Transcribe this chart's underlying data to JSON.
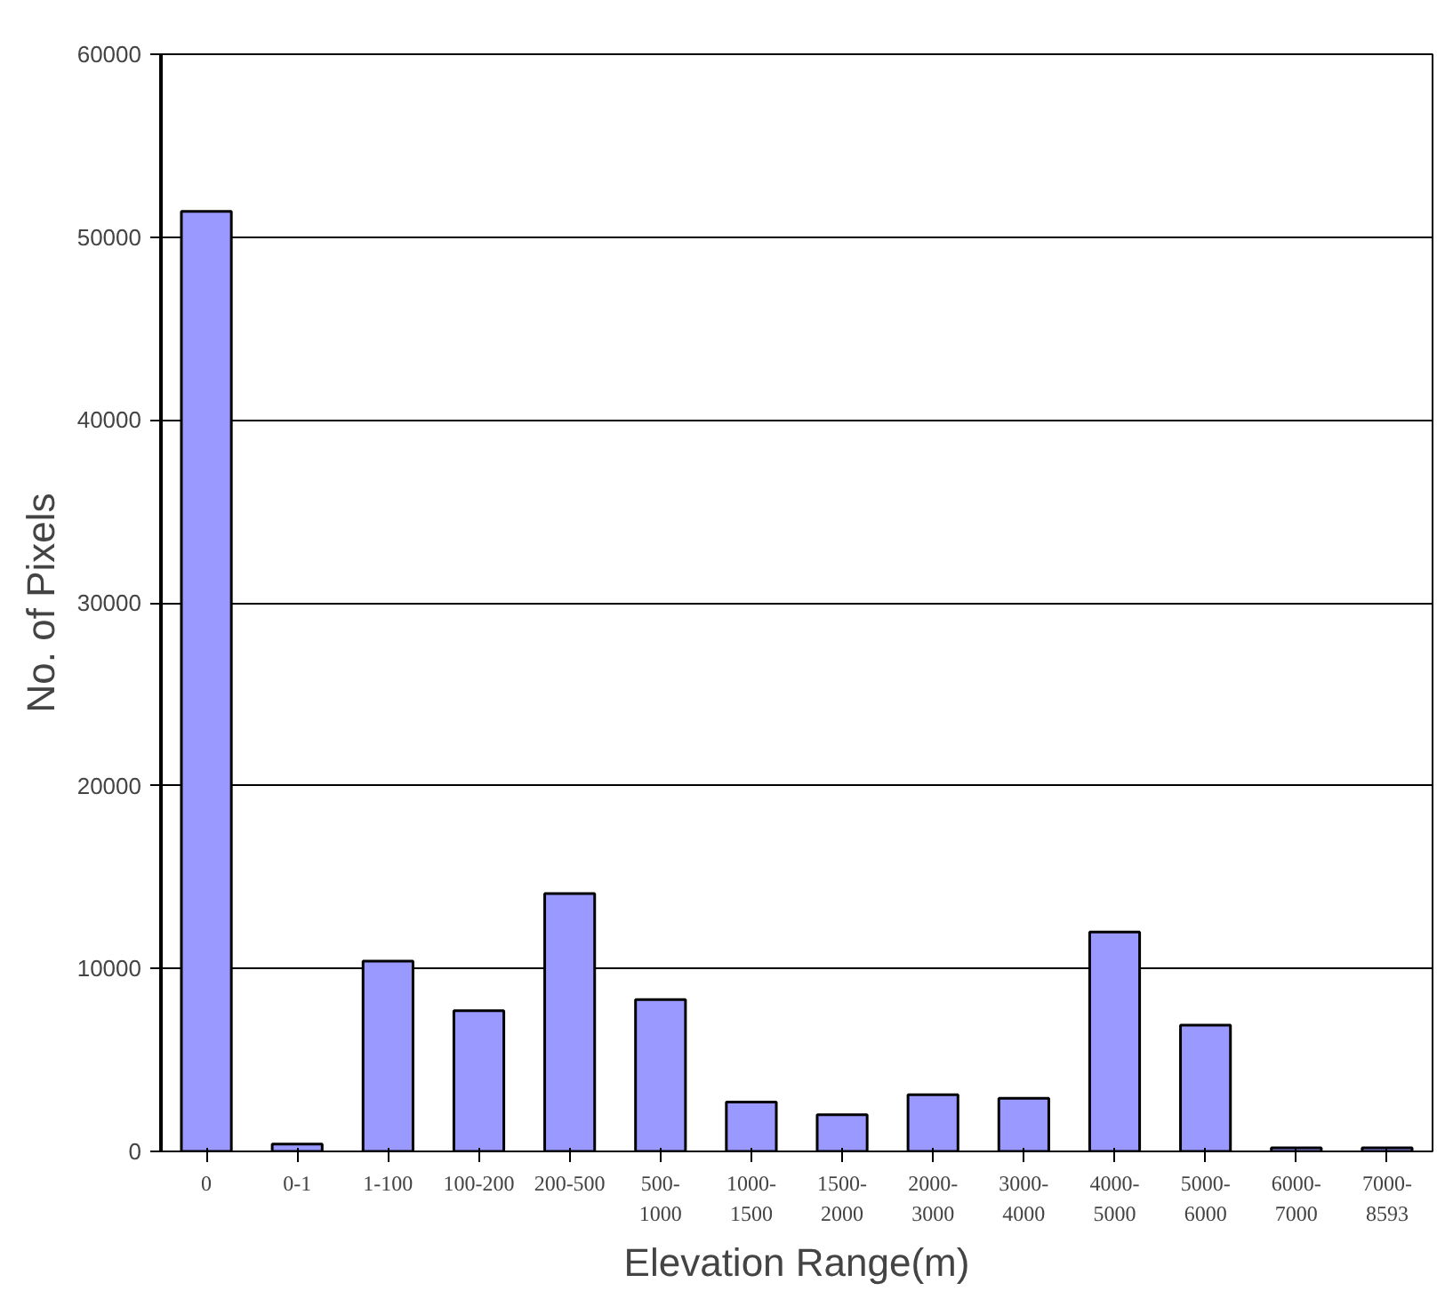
{
  "chart_data": {
    "type": "bar",
    "xlabel": "Elevation Range(m)",
    "ylabel": "No. of Pixels",
    "categories": [
      "0",
      "0-1",
      "1-100",
      "100-200",
      "200-500",
      "500-1000",
      "1000-1500",
      "1500-2000",
      "2000-3000",
      "3000-4000",
      "4000-5000",
      "5000-6000",
      "6000-7000",
      "7000-8593"
    ],
    "values": [
      51400,
      400,
      10400,
      7700,
      14100,
      8300,
      2700,
      2000,
      3100,
      2900,
      12000,
      6900,
      200,
      200
    ],
    "color": "#9999ff",
    "ylim": [
      0,
      60000
    ],
    "yticks": [
      0,
      10000,
      20000,
      30000,
      40000,
      50000,
      60000
    ],
    "grid": "y"
  }
}
